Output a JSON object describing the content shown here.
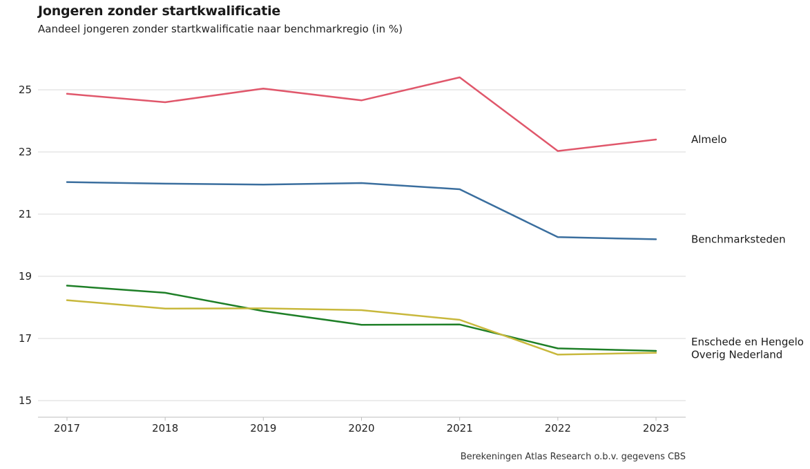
{
  "header": {
    "title": "Jongeren zonder startkwalificatie",
    "subtitle": "Aandeel jongeren zonder startkwalificatie naar benchmarkregio (in %)"
  },
  "footer": {
    "caption": "Berekeningen Atlas Research o.b.v. gegevens CBS"
  },
  "chart_data": {
    "type": "line",
    "title": "Jongeren zonder startkwalificatie",
    "subtitle": "Aandeel jongeren zonder startkwalificatie naar benchmarkregio (in %)",
    "x": [
      2017,
      2018,
      2019,
      2020,
      2021,
      2022,
      2023
    ],
    "x_tick_labels": [
      "2017",
      "2018",
      "2019",
      "2020",
      "2021",
      "2022",
      "2023"
    ],
    "y_ticks": [
      15,
      17,
      19,
      21,
      23,
      25
    ],
    "y_tick_labels": [
      "15",
      "17",
      "19",
      "21",
      "23",
      "25"
    ],
    "ylim": [
      14.5,
      26
    ],
    "grid": true,
    "legend": "direct labels at line ends (right)",
    "series": [
      {
        "name": "Almelo",
        "color": "#E0576B",
        "values": [
          24.87,
          24.6,
          25.04,
          24.66,
          25.4,
          23.03,
          23.4
        ]
      },
      {
        "name": "Benchmarksteden",
        "color": "#3A6E9E",
        "values": [
          22.03,
          21.98,
          21.95,
          22.0,
          21.8,
          20.26,
          20.19
        ]
      },
      {
        "name": "Enschede en Hengelo",
        "color": "#1E7F27",
        "values": [
          18.7,
          18.47,
          17.88,
          17.44,
          17.45,
          16.68,
          16.6
        ]
      },
      {
        "name": "Overig Nederland",
        "color": "#C8B83C",
        "values": [
          18.23,
          17.96,
          17.97,
          17.91,
          17.6,
          16.48,
          16.54
        ]
      }
    ]
  }
}
